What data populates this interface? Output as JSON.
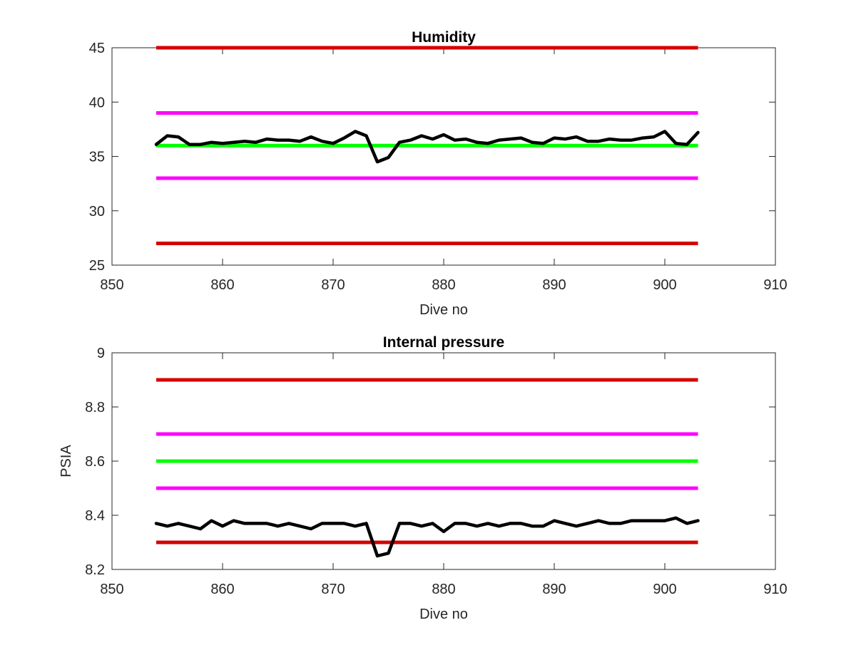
{
  "colors": {
    "red": "#d40000",
    "magenta": "#ff00ff",
    "green": "#00ff00",
    "black": "#000000",
    "axis": "#262626"
  },
  "chart_data": [
    {
      "type": "line",
      "title": "Humidity",
      "xlabel": "Dive no",
      "ylabel": "",
      "xlim": [
        850,
        910
      ],
      "ylim": [
        25,
        45
      ],
      "xticks": [
        850,
        860,
        870,
        880,
        890,
        900,
        910
      ],
      "yticks": [
        25,
        30,
        35,
        40,
        45
      ],
      "grid": false,
      "reference_lines": [
        {
          "color": "red",
          "x": [
            854,
            903
          ],
          "y": 45
        },
        {
          "color": "magenta",
          "x": [
            854,
            903
          ],
          "y": 39
        },
        {
          "color": "green",
          "x": [
            854,
            903
          ],
          "y": 36
        },
        {
          "color": "magenta",
          "x": [
            854,
            903
          ],
          "y": 33
        },
        {
          "color": "red",
          "x": [
            854,
            903
          ],
          "y": 27
        }
      ],
      "series": [
        {
          "color": "black",
          "x": [
            854,
            855,
            856,
            857,
            858,
            859,
            860,
            861,
            862,
            863,
            864,
            865,
            866,
            867,
            868,
            869,
            870,
            871,
            872,
            873,
            874,
            875,
            876,
            877,
            878,
            879,
            880,
            881,
            882,
            883,
            884,
            885,
            886,
            887,
            888,
            889,
            890,
            891,
            892,
            893,
            894,
            895,
            896,
            897,
            898,
            899,
            900,
            901,
            902,
            903
          ],
          "y": [
            36.1,
            36.9,
            36.8,
            36.1,
            36.1,
            36.3,
            36.2,
            36.3,
            36.4,
            36.3,
            36.6,
            36.5,
            36.5,
            36.4,
            36.8,
            36.4,
            36.2,
            36.7,
            37.3,
            36.9,
            34.5,
            34.9,
            36.3,
            36.5,
            36.9,
            36.6,
            37.0,
            36.5,
            36.6,
            36.3,
            36.2,
            36.5,
            36.6,
            36.7,
            36.3,
            36.2,
            36.7,
            36.6,
            36.8,
            36.4,
            36.4,
            36.6,
            36.5,
            36.5,
            36.7,
            36.8,
            37.3,
            36.2,
            36.1,
            37.2
          ]
        }
      ]
    },
    {
      "type": "line",
      "title": "Internal pressure",
      "xlabel": "Dive no",
      "ylabel": "PSIA",
      "xlim": [
        850,
        910
      ],
      "ylim": [
        8.2,
        9
      ],
      "xticks": [
        850,
        860,
        870,
        880,
        890,
        900,
        910
      ],
      "yticks": [
        8.2,
        8.4,
        8.6,
        8.8,
        9
      ],
      "ytick_labels": [
        "8.2",
        "8.4",
        "8.6",
        "8.8",
        "9"
      ],
      "grid": false,
      "reference_lines": [
        {
          "color": "red",
          "x": [
            854,
            903
          ],
          "y": 8.9
        },
        {
          "color": "magenta",
          "x": [
            854,
            903
          ],
          "y": 8.7
        },
        {
          "color": "green",
          "x": [
            854,
            903
          ],
          "y": 8.6
        },
        {
          "color": "magenta",
          "x": [
            854,
            903
          ],
          "y": 8.5
        },
        {
          "color": "red",
          "x": [
            854,
            903
          ],
          "y": 8.3
        }
      ],
      "series": [
        {
          "color": "black",
          "x": [
            854,
            855,
            856,
            857,
            858,
            859,
            860,
            861,
            862,
            863,
            864,
            865,
            866,
            867,
            868,
            869,
            870,
            871,
            872,
            873,
            874,
            875,
            876,
            877,
            878,
            879,
            880,
            881,
            882,
            883,
            884,
            885,
            886,
            887,
            888,
            889,
            890,
            891,
            892,
            893,
            894,
            895,
            896,
            897,
            898,
            899,
            900,
            901,
            902,
            903
          ],
          "y": [
            8.37,
            8.36,
            8.37,
            8.36,
            8.35,
            8.38,
            8.36,
            8.38,
            8.37,
            8.37,
            8.37,
            8.36,
            8.37,
            8.36,
            8.35,
            8.37,
            8.37,
            8.37,
            8.36,
            8.37,
            8.25,
            8.26,
            8.37,
            8.37,
            8.36,
            8.37,
            8.34,
            8.37,
            8.37,
            8.36,
            8.37,
            8.36,
            8.37,
            8.37,
            8.36,
            8.36,
            8.38,
            8.37,
            8.36,
            8.37,
            8.38,
            8.37,
            8.37,
            8.38,
            8.38,
            8.38,
            8.38,
            8.39,
            8.37,
            8.38
          ]
        }
      ]
    }
  ]
}
